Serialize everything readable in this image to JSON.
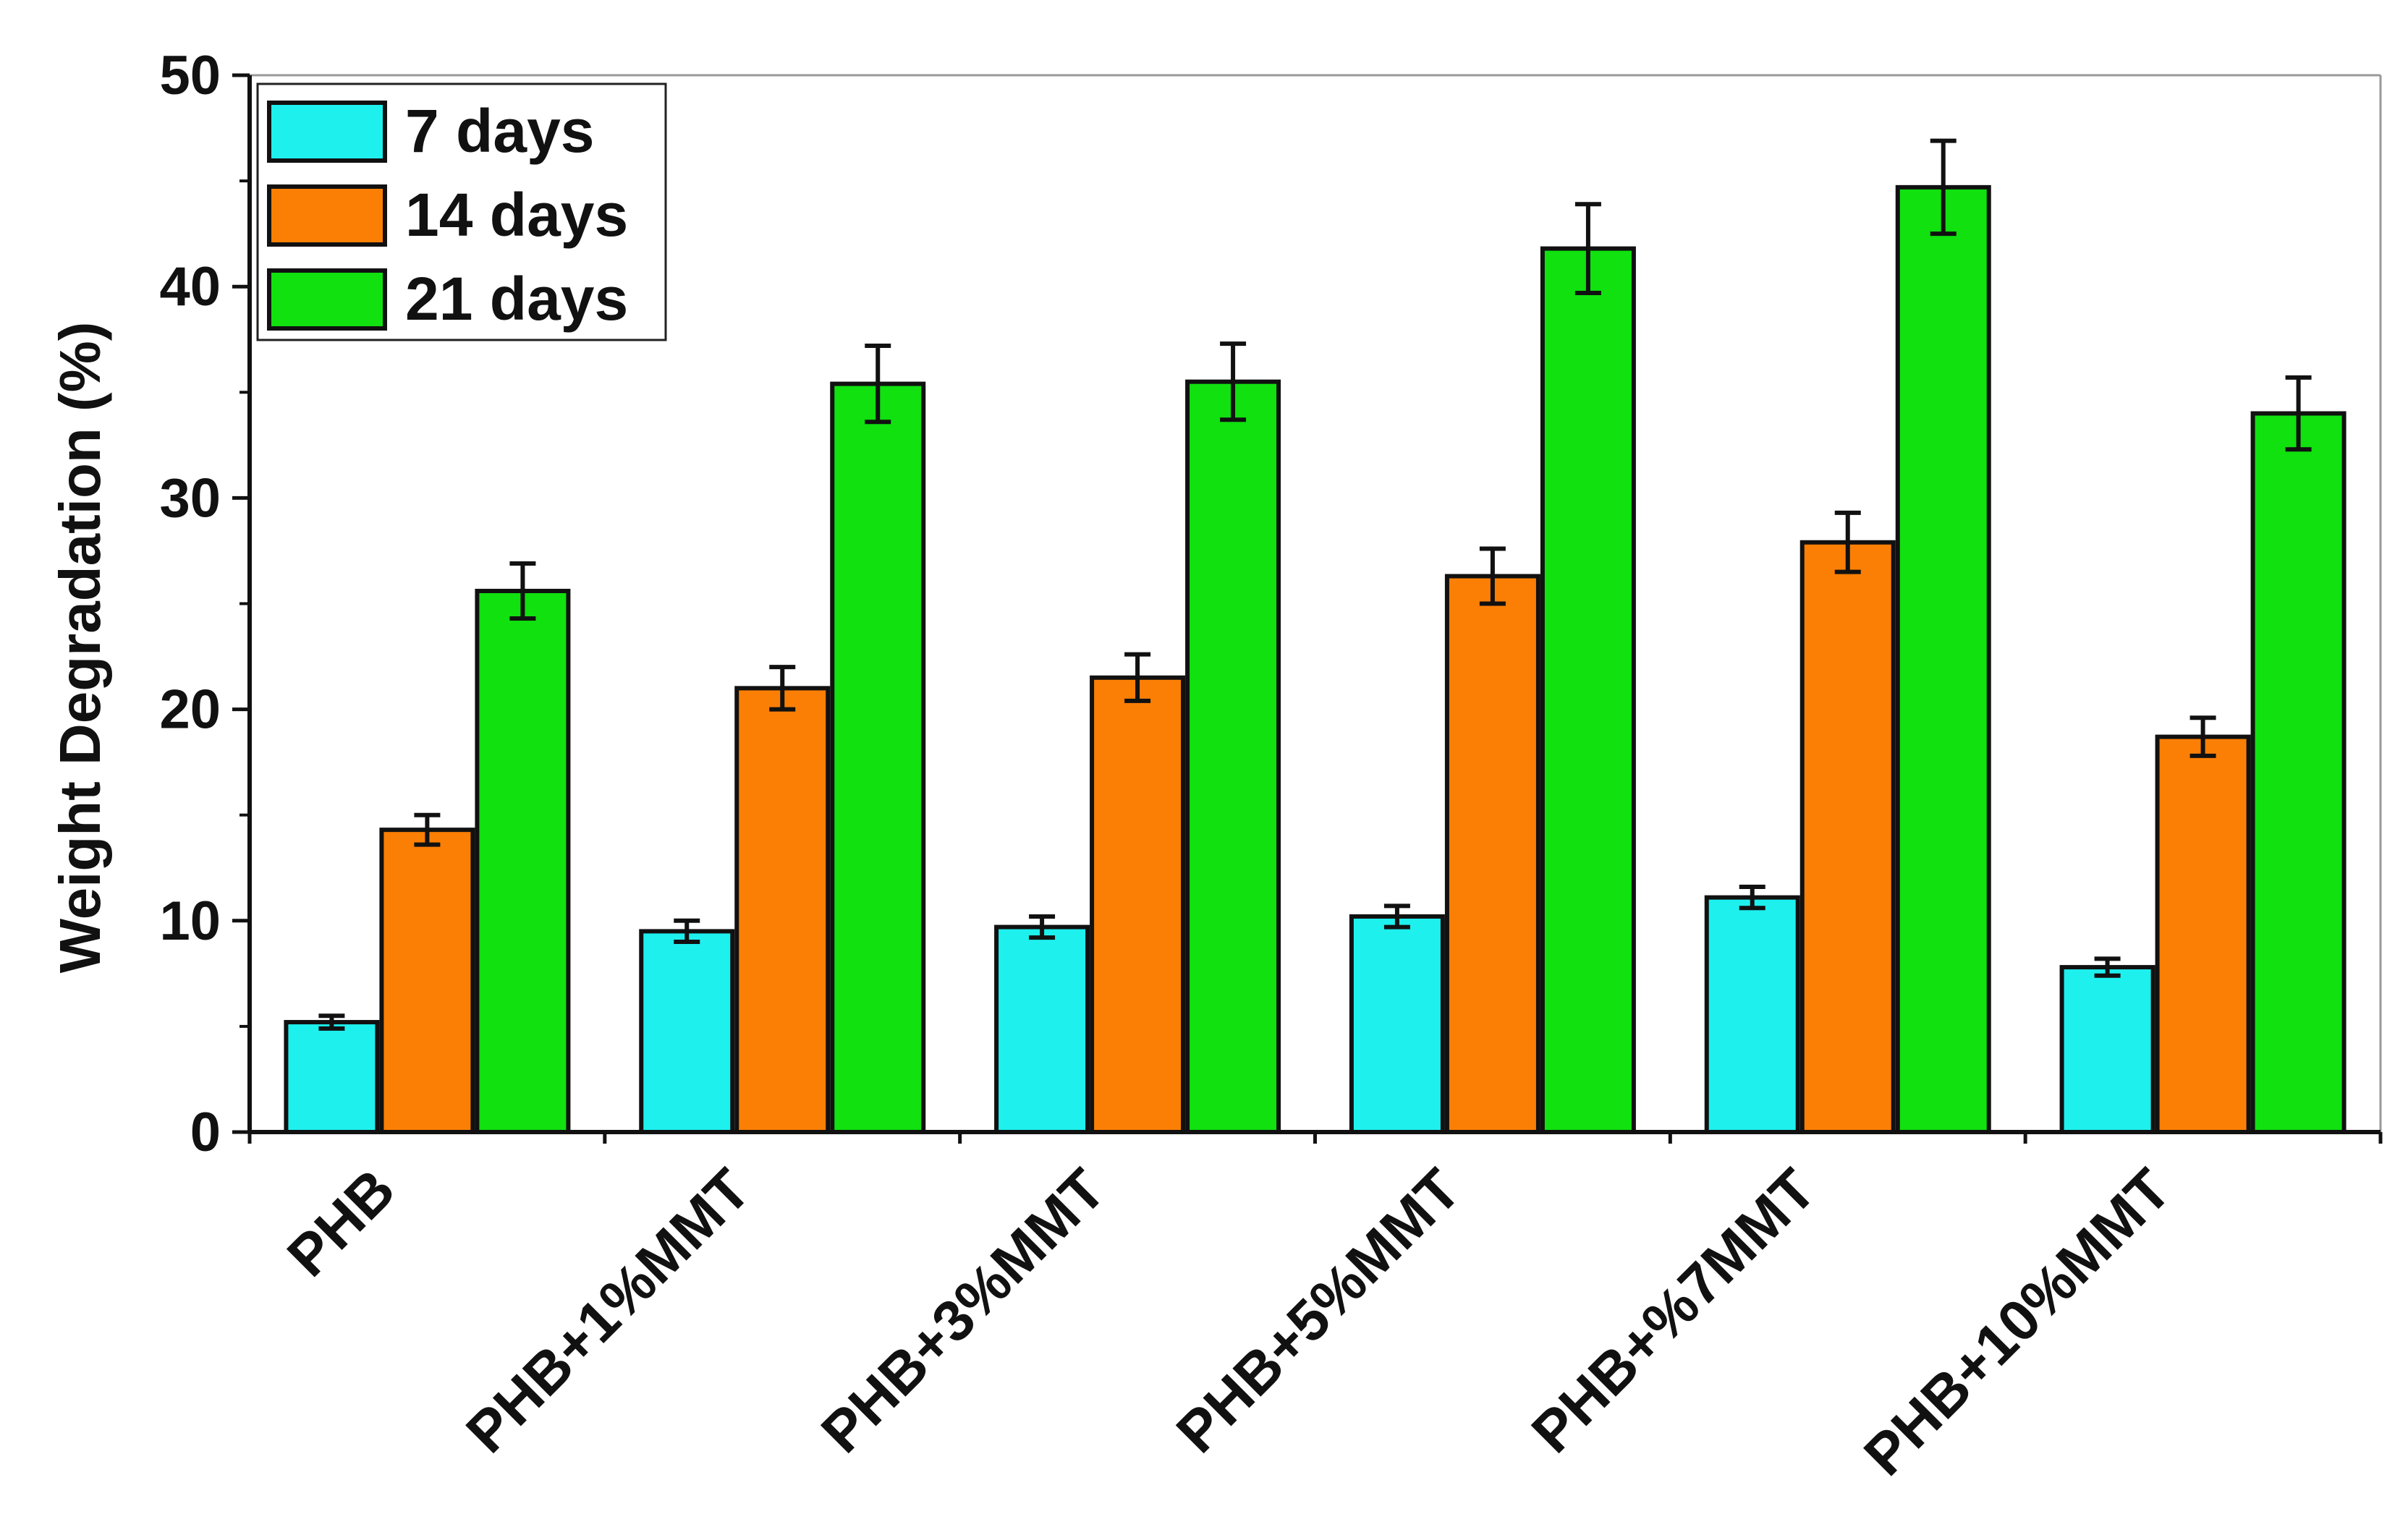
{
  "chart_data": {
    "type": "bar",
    "title": "",
    "xlabel": "",
    "ylabel": "Weight Degradation (%)",
    "ylim": [
      0,
      50
    ],
    "yticks": [
      0,
      10,
      20,
      30,
      40,
      50
    ],
    "grid": false,
    "legend_position": "top-left",
    "categories": [
      "PHB",
      "PHB+1%MMT",
      "PHB+3%MMT",
      "PHB+5%MMT",
      "PHB+%7MMT",
      "PHB+10%MMT"
    ],
    "series": [
      {
        "name": "7 days",
        "color": "#1ef0ee",
        "values": [
          5.2,
          9.5,
          9.7,
          10.2,
          11.1,
          7.8
        ],
        "errors": [
          0.3,
          0.5,
          0.5,
          0.5,
          0.5,
          0.4
        ]
      },
      {
        "name": "14 days",
        "color": "#fb7f05",
        "values": [
          14.3,
          21.0,
          21.5,
          26.3,
          27.9,
          18.7
        ],
        "errors": [
          0.7,
          1.0,
          1.1,
          1.3,
          1.4,
          0.9
        ]
      },
      {
        "name": "21 days",
        "color": "#10e10f",
        "values": [
          25.6,
          35.4,
          35.5,
          41.8,
          44.7,
          34.0
        ],
        "errors": [
          1.3,
          1.8,
          1.8,
          2.1,
          2.2,
          1.7
        ]
      }
    ]
  }
}
